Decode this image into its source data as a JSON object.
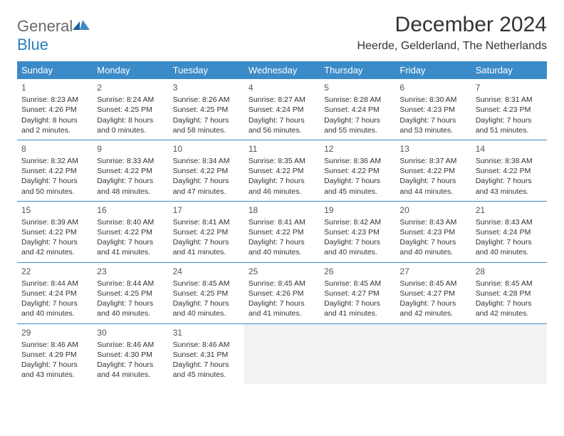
{
  "brand": {
    "word1": "General",
    "word2": "Blue"
  },
  "title": "December 2024",
  "location": "Heerde, Gelderland, The Netherlands",
  "colors": {
    "header_bg": "#3b8bc8",
    "header_text": "#ffffff",
    "brand_gray": "#6a6a6a",
    "brand_blue": "#2a7fbf",
    "text": "#333333",
    "empty_bg": "#f2f2f2"
  },
  "day_headers": [
    "Sunday",
    "Monday",
    "Tuesday",
    "Wednesday",
    "Thursday",
    "Friday",
    "Saturday"
  ],
  "weeks": [
    [
      {
        "day": "1",
        "sunrise": "Sunrise: 8:23 AM",
        "sunset": "Sunset: 4:26 PM",
        "daylight": "Daylight: 8 hours and 2 minutes."
      },
      {
        "day": "2",
        "sunrise": "Sunrise: 8:24 AM",
        "sunset": "Sunset: 4:25 PM",
        "daylight": "Daylight: 8 hours and 0 minutes."
      },
      {
        "day": "3",
        "sunrise": "Sunrise: 8:26 AM",
        "sunset": "Sunset: 4:25 PM",
        "daylight": "Daylight: 7 hours and 58 minutes."
      },
      {
        "day": "4",
        "sunrise": "Sunrise: 8:27 AM",
        "sunset": "Sunset: 4:24 PM",
        "daylight": "Daylight: 7 hours and 56 minutes."
      },
      {
        "day": "5",
        "sunrise": "Sunrise: 8:28 AM",
        "sunset": "Sunset: 4:24 PM",
        "daylight": "Daylight: 7 hours and 55 minutes."
      },
      {
        "day": "6",
        "sunrise": "Sunrise: 8:30 AM",
        "sunset": "Sunset: 4:23 PM",
        "daylight": "Daylight: 7 hours and 53 minutes."
      },
      {
        "day": "7",
        "sunrise": "Sunrise: 8:31 AM",
        "sunset": "Sunset: 4:23 PM",
        "daylight": "Daylight: 7 hours and 51 minutes."
      }
    ],
    [
      {
        "day": "8",
        "sunrise": "Sunrise: 8:32 AM",
        "sunset": "Sunset: 4:22 PM",
        "daylight": "Daylight: 7 hours and 50 minutes."
      },
      {
        "day": "9",
        "sunrise": "Sunrise: 8:33 AM",
        "sunset": "Sunset: 4:22 PM",
        "daylight": "Daylight: 7 hours and 48 minutes."
      },
      {
        "day": "10",
        "sunrise": "Sunrise: 8:34 AM",
        "sunset": "Sunset: 4:22 PM",
        "daylight": "Daylight: 7 hours and 47 minutes."
      },
      {
        "day": "11",
        "sunrise": "Sunrise: 8:35 AM",
        "sunset": "Sunset: 4:22 PM",
        "daylight": "Daylight: 7 hours and 46 minutes."
      },
      {
        "day": "12",
        "sunrise": "Sunrise: 8:36 AM",
        "sunset": "Sunset: 4:22 PM",
        "daylight": "Daylight: 7 hours and 45 minutes."
      },
      {
        "day": "13",
        "sunrise": "Sunrise: 8:37 AM",
        "sunset": "Sunset: 4:22 PM",
        "daylight": "Daylight: 7 hours and 44 minutes."
      },
      {
        "day": "14",
        "sunrise": "Sunrise: 8:38 AM",
        "sunset": "Sunset: 4:22 PM",
        "daylight": "Daylight: 7 hours and 43 minutes."
      }
    ],
    [
      {
        "day": "15",
        "sunrise": "Sunrise: 8:39 AM",
        "sunset": "Sunset: 4:22 PM",
        "daylight": "Daylight: 7 hours and 42 minutes."
      },
      {
        "day": "16",
        "sunrise": "Sunrise: 8:40 AM",
        "sunset": "Sunset: 4:22 PM",
        "daylight": "Daylight: 7 hours and 41 minutes."
      },
      {
        "day": "17",
        "sunrise": "Sunrise: 8:41 AM",
        "sunset": "Sunset: 4:22 PM",
        "daylight": "Daylight: 7 hours and 41 minutes."
      },
      {
        "day": "18",
        "sunrise": "Sunrise: 8:41 AM",
        "sunset": "Sunset: 4:22 PM",
        "daylight": "Daylight: 7 hours and 40 minutes."
      },
      {
        "day": "19",
        "sunrise": "Sunrise: 8:42 AM",
        "sunset": "Sunset: 4:23 PM",
        "daylight": "Daylight: 7 hours and 40 minutes."
      },
      {
        "day": "20",
        "sunrise": "Sunrise: 8:43 AM",
        "sunset": "Sunset: 4:23 PM",
        "daylight": "Daylight: 7 hours and 40 minutes."
      },
      {
        "day": "21",
        "sunrise": "Sunrise: 8:43 AM",
        "sunset": "Sunset: 4:24 PM",
        "daylight": "Daylight: 7 hours and 40 minutes."
      }
    ],
    [
      {
        "day": "22",
        "sunrise": "Sunrise: 8:44 AM",
        "sunset": "Sunset: 4:24 PM",
        "daylight": "Daylight: 7 hours and 40 minutes."
      },
      {
        "day": "23",
        "sunrise": "Sunrise: 8:44 AM",
        "sunset": "Sunset: 4:25 PM",
        "daylight": "Daylight: 7 hours and 40 minutes."
      },
      {
        "day": "24",
        "sunrise": "Sunrise: 8:45 AM",
        "sunset": "Sunset: 4:25 PM",
        "daylight": "Daylight: 7 hours and 40 minutes."
      },
      {
        "day": "25",
        "sunrise": "Sunrise: 8:45 AM",
        "sunset": "Sunset: 4:26 PM",
        "daylight": "Daylight: 7 hours and 41 minutes."
      },
      {
        "day": "26",
        "sunrise": "Sunrise: 8:45 AM",
        "sunset": "Sunset: 4:27 PM",
        "daylight": "Daylight: 7 hours and 41 minutes."
      },
      {
        "day": "27",
        "sunrise": "Sunrise: 8:45 AM",
        "sunset": "Sunset: 4:27 PM",
        "daylight": "Daylight: 7 hours and 42 minutes."
      },
      {
        "day": "28",
        "sunrise": "Sunrise: 8:45 AM",
        "sunset": "Sunset: 4:28 PM",
        "daylight": "Daylight: 7 hours and 42 minutes."
      }
    ],
    [
      {
        "day": "29",
        "sunrise": "Sunrise: 8:46 AM",
        "sunset": "Sunset: 4:29 PM",
        "daylight": "Daylight: 7 hours and 43 minutes."
      },
      {
        "day": "30",
        "sunrise": "Sunrise: 8:46 AM",
        "sunset": "Sunset: 4:30 PM",
        "daylight": "Daylight: 7 hours and 44 minutes."
      },
      {
        "day": "31",
        "sunrise": "Sunrise: 8:46 AM",
        "sunset": "Sunset: 4:31 PM",
        "daylight": "Daylight: 7 hours and 45 minutes."
      },
      null,
      null,
      null,
      null
    ]
  ]
}
